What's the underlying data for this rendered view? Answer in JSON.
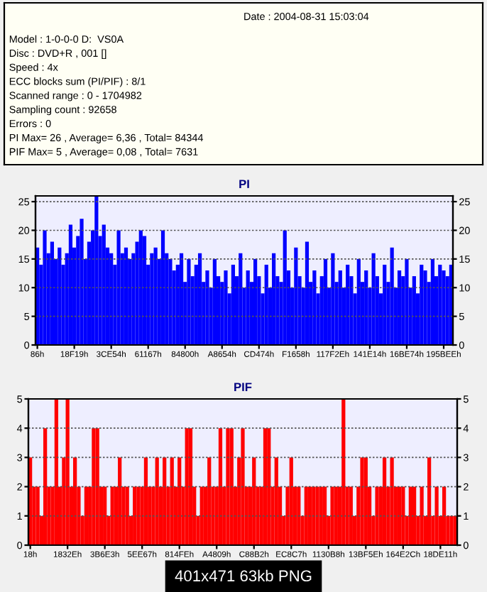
{
  "chart_data": [
    {
      "type": "other",
      "annotations": [
        "Date : 2004-08-31 15:03:04",
        "Model : 1-0-0-0 D:  VS0A",
        "Disc : DVD+R , 001 []",
        "Speed : 4x",
        "ECC blocks sum (PI/PIF) : 8/1",
        "Scanned range : 0 - 1704982",
        "Sampling count : 92658",
        "Errors : 0",
        "PI Max= 26 , Average= 6,36 , Total= 84344",
        "PIF Max= 5 , Average= 0,08 , Total= 7631"
      ]
    },
    {
      "type": "bar",
      "title": "PI",
      "categories": [
        "86h",
        null,
        null,
        null,
        null,
        null,
        null,
        null,
        null,
        null,
        "18F19h",
        null,
        null,
        null,
        null,
        null,
        null,
        null,
        null,
        null,
        "3CE54h",
        null,
        null,
        null,
        null,
        null,
        null,
        null,
        null,
        null,
        "61167h",
        null,
        null,
        null,
        null,
        null,
        null,
        null,
        null,
        null,
        "84800h",
        null,
        null,
        null,
        null,
        null,
        null,
        null,
        null,
        null,
        "A8654h",
        null,
        null,
        null,
        null,
        null,
        null,
        null,
        null,
        null,
        "CD474h",
        null,
        null,
        null,
        null,
        null,
        null,
        null,
        null,
        null,
        "F1658h",
        null,
        null,
        null,
        null,
        null,
        null,
        null,
        null,
        null,
        "117F2Eh",
        null,
        null,
        null,
        null,
        null,
        null,
        null,
        null,
        null,
        "141E14h",
        null,
        null,
        null,
        null,
        null,
        null,
        null,
        null,
        null,
        "16BE74h",
        null,
        null,
        null,
        null,
        null,
        null,
        null,
        null,
        null,
        "195BEEh",
        null,
        null
      ],
      "series": [
        {
          "color": "#0000ff",
          "values": [
            17,
            14,
            20,
            16,
            18,
            15,
            17,
            14,
            16,
            21,
            17,
            19,
            22,
            15,
            18,
            20,
            26,
            19,
            21,
            17,
            16,
            14,
            20,
            16,
            17,
            15,
            16,
            18,
            20,
            19,
            14,
            16,
            17,
            15,
            20,
            16,
            15,
            13,
            14,
            16,
            11,
            15,
            12,
            14,
            16,
            11,
            13,
            10,
            15,
            12,
            11,
            13,
            9,
            14,
            12,
            16,
            10,
            13,
            11,
            15,
            12,
            9,
            14,
            10,
            16,
            12,
            11,
            20,
            13,
            10,
            17,
            12,
            10,
            18,
            11,
            13,
            9,
            12,
            15,
            10,
            16,
            11,
            13,
            10,
            14,
            12,
            9,
            15,
            11,
            13,
            10,
            16,
            12,
            9,
            14,
            11,
            17,
            10,
            13,
            12,
            15,
            10,
            12,
            9,
            14,
            13,
            11,
            15,
            12,
            14,
            13,
            12,
            14
          ]
        }
      ],
      "ylim": [
        0,
        26
      ],
      "yticks": [
        0,
        5,
        10,
        15,
        20,
        25
      ],
      "y2lim": [
        0,
        26
      ],
      "y2ticks": [
        0,
        5,
        10,
        15,
        20,
        25
      ],
      "grid": "y"
    },
    {
      "type": "bar",
      "title": "PIF",
      "categories": [
        "18h",
        null,
        null,
        null,
        null,
        null,
        null,
        null,
        null,
        null,
        "1832Eh",
        null,
        null,
        null,
        null,
        null,
        null,
        null,
        null,
        null,
        "3B6E3h",
        null,
        null,
        null,
        null,
        null,
        null,
        null,
        null,
        null,
        "5EE67h",
        null,
        null,
        null,
        null,
        null,
        null,
        null,
        null,
        null,
        "814FEh",
        null,
        null,
        null,
        null,
        null,
        null,
        null,
        null,
        null,
        "A4809h",
        null,
        null,
        null,
        null,
        null,
        null,
        null,
        null,
        null,
        "C88B2h",
        null,
        null,
        null,
        null,
        null,
        null,
        null,
        null,
        null,
        "EC8C7h",
        null,
        null,
        null,
        null,
        null,
        null,
        null,
        null,
        null,
        "1130B8h",
        null,
        null,
        null,
        null,
        null,
        null,
        null,
        null,
        null,
        "13BF5Eh",
        null,
        null,
        null,
        null,
        null,
        null,
        null,
        null,
        null,
        "164E2Ch",
        null,
        null,
        null,
        null,
        null,
        null,
        null,
        null,
        null,
        "18DE11h",
        null,
        null,
        null,
        null
      ],
      "series": [
        {
          "color": "#ff0000",
          "values": [
            3,
            2,
            2,
            1,
            4,
            2,
            2,
            5,
            2,
            3,
            5,
            2,
            3,
            2,
            1,
            2,
            2,
            4,
            4,
            2,
            2,
            1,
            2,
            2,
            3,
            2,
            2,
            1,
            2,
            2,
            2,
            3,
            2,
            2,
            3,
            2,
            3,
            2,
            3,
            2,
            3,
            2,
            4,
            4,
            2,
            1,
            2,
            2,
            3,
            2,
            2,
            4,
            2,
            4,
            4,
            2,
            3,
            4,
            2,
            2,
            3,
            2,
            2,
            4,
            4,
            2,
            3,
            2,
            1,
            2,
            3,
            2,
            2,
            1,
            2,
            2,
            2,
            2,
            2,
            2,
            1,
            2,
            2,
            2,
            5,
            2,
            2,
            1,
            2,
            3,
            3,
            2,
            1,
            2,
            2,
            3,
            2,
            3,
            2,
            2,
            2,
            1,
            2,
            2,
            1,
            2,
            1,
            3,
            1,
            2,
            1,
            2,
            1,
            1,
            1
          ]
        }
      ],
      "ylim": [
        0,
        5
      ],
      "yticks": [
        0,
        1,
        2,
        3,
        4,
        5
      ],
      "y2lim": [
        0,
        5
      ],
      "y2ticks": [
        0,
        1,
        2,
        3,
        4,
        5
      ],
      "grid": "y",
      "annotations": [
        "401x471 63kb PNG"
      ]
    }
  ]
}
